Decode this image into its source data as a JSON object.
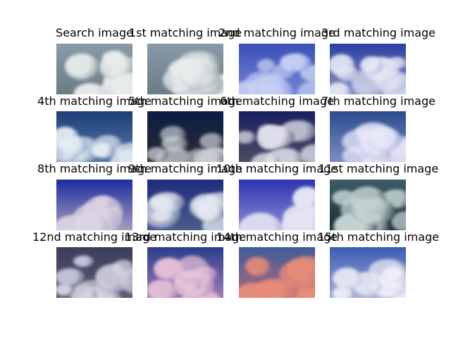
{
  "figure": {
    "cells": [
      {
        "title": "Search image",
        "sky": "#8a9aa8",
        "cloud": "#e8ecec",
        "shade": "#6a7c84"
      },
      {
        "title": "1st matching image",
        "sky": "#8a9aa8",
        "cloud": "#e8ecec",
        "shade": "#6a7c84"
      },
      {
        "title": "2nd matching image",
        "sky": "#3a4fb8",
        "cloud": "#c8d2f4",
        "shade": "#7486d8"
      },
      {
        "title": "3rd matching image",
        "sky": "#2a3fa0",
        "cloud": "#e4e6f4",
        "shade": "#8a92c8"
      },
      {
        "title": "4th matching image",
        "sky": "#1c3f78",
        "cloud": "#e4ecf4",
        "shade": "#5a78a4"
      },
      {
        "title": "5th matching image",
        "sky": "#0c1c44",
        "cloud": "#c8ccd4",
        "shade": "#2a2c34"
      },
      {
        "title": "6th matching image",
        "sky": "#1a2060",
        "cloud": "#e0e0ec",
        "shade": "#4a4c64"
      },
      {
        "title": "7th matching image",
        "sky": "#2c4c8c",
        "cloud": "#e8e8f8",
        "shade": "#7c8cc4"
      },
      {
        "title": "8th matching image",
        "sky": "#1c2ca0",
        "cloud": "#dcd4e4",
        "shade": "#a89cbc"
      },
      {
        "title": "9th matching image",
        "sky": "#1c2c7c",
        "cloud": "#e4e8f0",
        "shade": "#4c5c8c"
      },
      {
        "title": "10th matching image",
        "sky": "#2c34b0",
        "cloud": "#e4e4f4",
        "shade": "#8c8cd4"
      },
      {
        "title": "11st matching image",
        "sky": "#3c5c68",
        "cloud": "#c4d4d4",
        "shade": "#1c2c30"
      },
      {
        "title": "12nd matching image",
        "sky": "#3c3c5c",
        "cloud": "#d4d4e4",
        "shade": "#5c5c74"
      },
      {
        "title": "13rd matching image",
        "sky": "#2c3c8c",
        "cloud": "#e8c4d8",
        "shade": "#9c7cb4"
      },
      {
        "title": "14th matching image",
        "sky": "#3c5c9c",
        "cloud": "#e88c78",
        "shade": "#b46c7c"
      },
      {
        "title": "15th matching image",
        "sky": "#3c5cb4",
        "cloud": "#f0f0f8",
        "shade": "#a4acd4"
      }
    ]
  }
}
